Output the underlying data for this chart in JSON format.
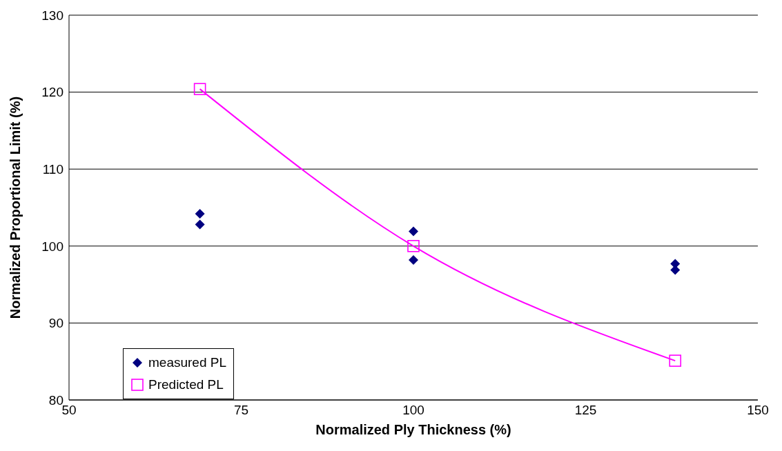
{
  "chart_data": {
    "type": "scatter",
    "xlabel": "Normalized Ply Thickness (%)",
    "ylabel": "Normalized Proportional Limit (%)",
    "xlim": [
      50,
      150
    ],
    "xticks": [
      50,
      75,
      100,
      125,
      150
    ],
    "ylim": [
      80,
      130
    ],
    "yticks": [
      80,
      90,
      100,
      110,
      120,
      130
    ],
    "grid": "y",
    "legend": "bottom left",
    "series": [
      {
        "name": "measured PL",
        "marker": "diamond",
        "color": "#000080",
        "x": [
          69,
          69,
          100,
          100,
          138,
          138
        ],
        "values": [
          104.2,
          102.8,
          101.9,
          98.2,
          97.7,
          96.9
        ]
      },
      {
        "name": "Predicted PL",
        "type": "line",
        "marker": "square",
        "line_style": "solid",
        "color": "#ff00ff",
        "x": [
          69,
          100,
          138
        ],
        "values": [
          120.4,
          100,
          85.1
        ]
      }
    ]
  }
}
